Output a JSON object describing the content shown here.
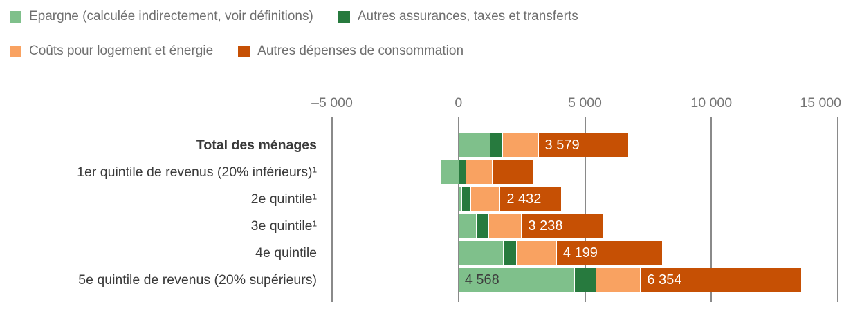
{
  "chart_data": {
    "type": "bar",
    "orientation": "horizontal",
    "stacked": true,
    "categories": [
      "Total des ménages",
      "1er quintile de revenus (20% inférieurs)¹",
      "2e quintile¹",
      "3e quintile¹",
      "4e quintile",
      "5e quintile de revenus (20% supérieurs)"
    ],
    "emphasized_category": "Total des ménages",
    "series": [
      {
        "name": "Epargne (calculée indirectement, voir définitions)",
        "color": "#7FC08B",
        "values": [
          1250,
          -710,
          120,
          700,
          1750,
          4568
        ]
      },
      {
        "name": "Autres assurances, taxes et transferts",
        "color": "#277A3E",
        "values": [
          490,
          270,
          360,
          490,
          520,
          860
        ]
      },
      {
        "name": "Coûts pour logement et énergie",
        "color": "#F9A261",
        "values": [
          1400,
          1040,
          1150,
          1290,
          1590,
          1760
        ]
      },
      {
        "name": "Autres dépenses de consommation",
        "color": "#C65004",
        "values": [
          3579,
          1660,
          2432,
          3238,
          4199,
          6354
        ]
      }
    ],
    "value_labels": [
      {
        "row": 0,
        "series": 3,
        "text": "3 579",
        "color": "#ffffff"
      },
      {
        "row": 2,
        "series": 3,
        "text": "2 432",
        "color": "#ffffff"
      },
      {
        "row": 3,
        "series": 3,
        "text": "3 238",
        "color": "#ffffff"
      },
      {
        "row": 4,
        "series": 3,
        "text": "4 199",
        "color": "#ffffff"
      },
      {
        "row": 5,
        "series": 0,
        "text": "4 568",
        "color": "#3d3d3d"
      },
      {
        "row": 5,
        "series": 3,
        "text": "6 354",
        "color": "#ffffff"
      }
    ],
    "x_axis": {
      "range": [
        -5000,
        15000
      ],
      "ticks": [
        -5000,
        0,
        5000,
        10000,
        15000
      ],
      "tick_labels": [
        "–5 000",
        "0",
        "5 000",
        "10 000",
        "15 000"
      ],
      "gridlines": true
    },
    "legend": {
      "position": "top",
      "entries": [
        {
          "label": "Epargne (calculée indirectement, voir définitions)",
          "color": "#7FC08B"
        },
        {
          "label": "Autres assurances, taxes et transferts",
          "color": "#277A3E"
        },
        {
          "label": "Coûts pour logement et énergie",
          "color": "#F9A261"
        },
        {
          "label": "Autres dépenses de consommation",
          "color": "#C65004"
        }
      ]
    },
    "colors": {
      "gridline": "#8a8a8a",
      "tick_text": "#757575",
      "category_text": "#3a3a3a",
      "legend_text": "#6f6f6f"
    }
  }
}
